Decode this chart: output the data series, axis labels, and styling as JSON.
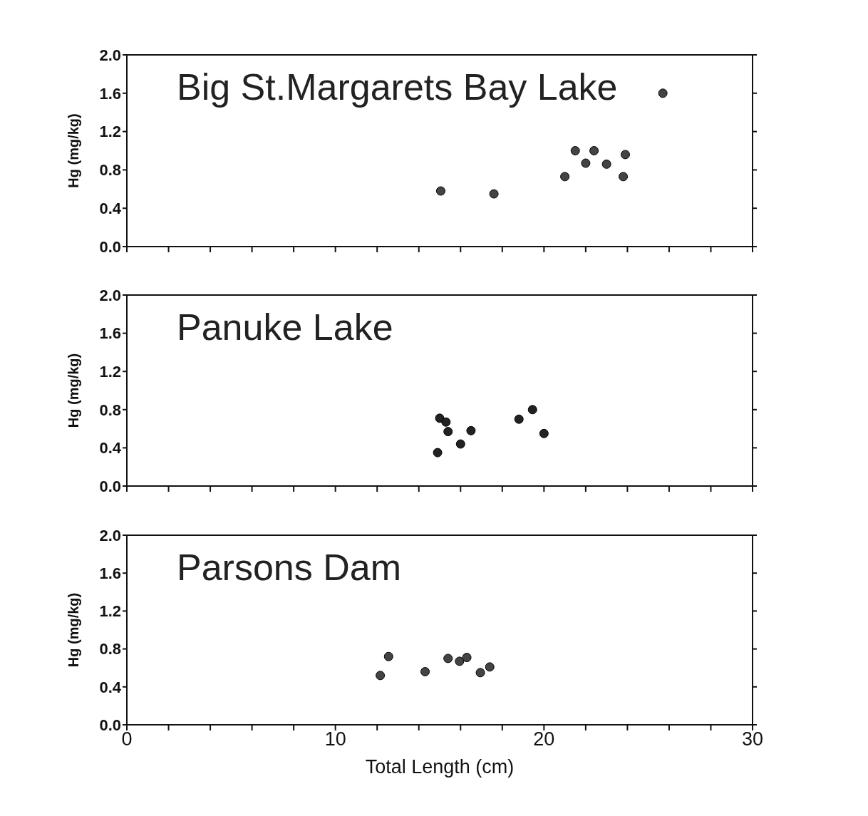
{
  "chart_data": [
    {
      "type": "scatter",
      "title": "Big St.Margarets Bay Lake",
      "ylabel": "Hg (mg/kg)",
      "tick_labels": "y",
      "marker": "circle",
      "x": [
        15.05,
        17.6,
        21.0,
        21.5,
        22.0,
        22.4,
        23.0,
        23.8,
        23.9,
        25.7
      ],
      "series": [
        {
          "color": "#444444",
          "values": [
            0.58,
            0.55,
            0.73,
            1.0,
            0.87,
            1.0,
            0.86,
            0.73,
            0.96,
            1.6
          ]
        }
      ],
      "xlim": [
        0,
        30
      ],
      "xticks": [
        0,
        {
          "value": 2,
          "label": null
        },
        {
          "value": 4,
          "label": null
        },
        {
          "value": 6,
          "label": null
        },
        {
          "value": 8,
          "label": null
        },
        10,
        {
          "value": 12,
          "label": null
        },
        {
          "value": 14,
          "label": null
        },
        {
          "value": 16,
          "label": null
        },
        {
          "value": 18,
          "label": null
        },
        20,
        {
          "value": 22,
          "label": null
        },
        {
          "value": 24,
          "label": null
        },
        {
          "value": 26,
          "label": null
        },
        {
          "value": 28,
          "label": null
        },
        30
      ],
      "ylim": [
        0,
        2
      ],
      "yticks": [
        {
          "value": 0,
          "label": "0.0"
        },
        {
          "value": 0.4,
          "label": "0.4"
        },
        {
          "value": 0.8,
          "label": "0.8"
        },
        {
          "value": 1.2,
          "label": "1.2"
        },
        {
          "value": 1.6,
          "label": "1.6"
        },
        {
          "value": 2,
          "label": "2.0"
        }
      ]
    },
    {
      "type": "scatter",
      "title": "Panuke Lake",
      "ylabel": "Hg (mg/kg)",
      "tick_labels": "y",
      "marker": "circle",
      "x": [
        15.0,
        15.3,
        15.4,
        14.9,
        16.0,
        16.5,
        18.8,
        19.45,
        20.0
      ],
      "series": [
        {
          "color": "#222222",
          "values": [
            0.71,
            0.67,
            0.57,
            0.35,
            0.44,
            0.58,
            0.7,
            0.8,
            0.55
          ]
        }
      ],
      "xlim": [
        0,
        30
      ],
      "xticks": [
        0,
        {
          "value": 2,
          "label": null
        },
        {
          "value": 4,
          "label": null
        },
        {
          "value": 6,
          "label": null
        },
        {
          "value": 8,
          "label": null
        },
        10,
        {
          "value": 12,
          "label": null
        },
        {
          "value": 14,
          "label": null
        },
        {
          "value": 16,
          "label": null
        },
        {
          "value": 18,
          "label": null
        },
        20,
        {
          "value": 22,
          "label": null
        },
        {
          "value": 24,
          "label": null
        },
        {
          "value": 26,
          "label": null
        },
        {
          "value": 28,
          "label": null
        },
        30
      ],
      "ylim": [
        0,
        2
      ],
      "yticks": [
        {
          "value": 0,
          "label": "0.0"
        },
        {
          "value": 0.4,
          "label": "0.4"
        },
        {
          "value": 0.8,
          "label": "0.8"
        },
        {
          "value": 1.2,
          "label": "1.2"
        },
        {
          "value": 1.6,
          "label": "1.6"
        },
        {
          "value": 2,
          "label": "2.0"
        }
      ]
    },
    {
      "type": "scatter",
      "title": "Parsons Dam",
      "xlabel": "Total Length (cm)",
      "ylabel": "Hg (mg/kg)",
      "marker": "circle",
      "x": [
        12.15,
        12.55,
        14.3,
        15.4,
        15.95,
        16.3,
        16.95,
        17.4
      ],
      "series": [
        {
          "color": "#444444",
          "values": [
            0.52,
            0.72,
            0.56,
            0.7,
            0.67,
            0.71,
            0.55,
            0.61
          ]
        }
      ],
      "xlim": [
        0,
        30
      ],
      "xticks": [
        0,
        {
          "value": 2,
          "label": null
        },
        {
          "value": 4,
          "label": null
        },
        {
          "value": 6,
          "label": null
        },
        {
          "value": 8,
          "label": null
        },
        10,
        {
          "value": 12,
          "label": null
        },
        {
          "value": 14,
          "label": null
        },
        {
          "value": 16,
          "label": null
        },
        {
          "value": 18,
          "label": null
        },
        20,
        {
          "value": 22,
          "label": null
        },
        {
          "value": 24,
          "label": null
        },
        {
          "value": 26,
          "label": null
        },
        {
          "value": 28,
          "label": null
        },
        30
      ],
      "ylim": [
        0,
        2
      ],
      "yticks": [
        {
          "value": 0,
          "label": "0.0"
        },
        {
          "value": 0.4,
          "label": "0.4"
        },
        {
          "value": 0.8,
          "label": "0.8"
        },
        {
          "value": 1.2,
          "label": "1.2"
        },
        {
          "value": 1.6,
          "label": "1.6"
        },
        {
          "value": 2,
          "label": "2.0"
        }
      ]
    }
  ]
}
